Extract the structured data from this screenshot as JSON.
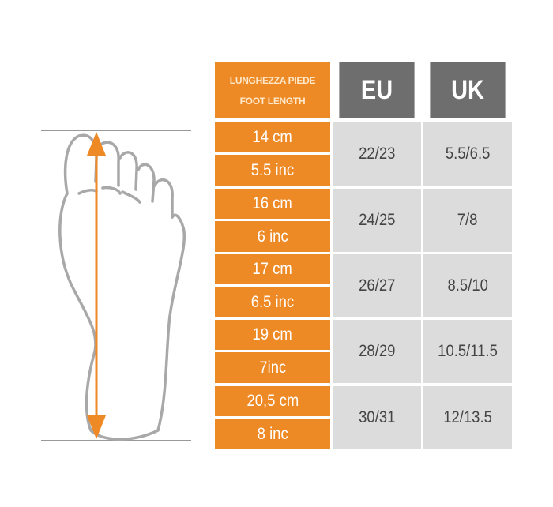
{
  "header": {
    "length_label_it": "LUNGHEZZA PIEDE",
    "length_label_en": "FOOT LENGTH",
    "eu": "EU",
    "uk": "UK"
  },
  "rows": [
    {
      "cm": "14 cm",
      "inch": "5.5 inc",
      "eu": "22/23",
      "uk": "5.5/6.5"
    },
    {
      "cm": "16 cm",
      "inch": "6 inc",
      "eu": "24/25",
      "uk": "7/8"
    },
    {
      "cm": "17 cm",
      "inch": "6.5 inc",
      "eu": "26/27",
      "uk": "8.5/10"
    },
    {
      "cm": "19 cm",
      "inch": "7inc",
      "eu": "28/29",
      "uk": "10.5/11.5"
    },
    {
      "cm": "20,5 cm",
      "inch": "8 inc",
      "eu": "30/31",
      "uk": "12/13.5"
    }
  ],
  "colors": {
    "orange": "#ee8a25",
    "header_gray": "#6e6e6e",
    "cell_gray": "#dcdcdc",
    "outline": "#a8a8a8"
  },
  "icons": {
    "illustration": "foot-outline-with-length-arrow"
  }
}
